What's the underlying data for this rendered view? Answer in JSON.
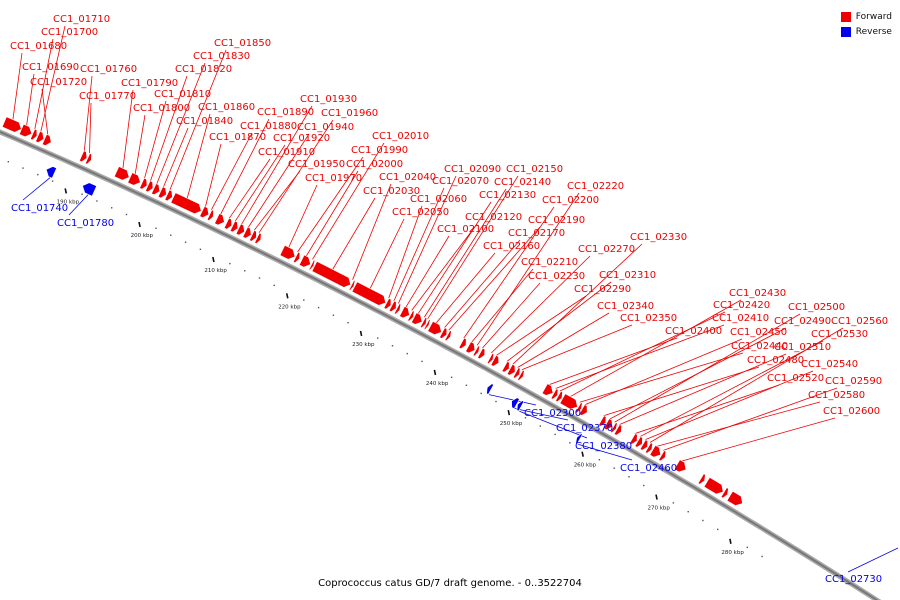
{
  "title": "Coprococcus catus GD/7 draft genome. - 0..3522704",
  "legend": [
    {
      "label": "Forward",
      "color": "#ee0000"
    },
    {
      "label": "Reverse",
      "color": "#0000ee"
    }
  ],
  "colors": {
    "forward": "#ee0000",
    "reverse": "#0000ee",
    "backbone": "#777777"
  },
  "ticks": [
    {
      "kbp": 190,
      "label": "190 kbp"
    },
    {
      "kbp": 200,
      "label": "200 kbp"
    },
    {
      "kbp": 210,
      "label": "210 kbp"
    },
    {
      "kbp": 220,
      "label": "220 kbp"
    },
    {
      "kbp": 230,
      "label": "230 kbp"
    },
    {
      "kbp": 240,
      "label": "240 kbp"
    },
    {
      "kbp": 250,
      "label": "250 kbp"
    },
    {
      "kbp": 260,
      "label": "260 kbp"
    },
    {
      "kbp": 270,
      "label": "270 kbp"
    },
    {
      "kbp": 280,
      "label": "280 kbp"
    }
  ],
  "genes": [
    {
      "id": "CC1_01680",
      "strand": "forward",
      "start": 179.6,
      "end": 181.9
    },
    {
      "id": "CC1_01690",
      "strand": "forward",
      "start": 181.9,
      "end": 183.3
    },
    {
      "id": "CC1_01700",
      "strand": "forward",
      "start": 183.4,
      "end": 184.0
    },
    {
      "id": "CC1_01710",
      "strand": "forward",
      "start": 184.1,
      "end": 184.9
    },
    {
      "id": "CC1_01720",
      "strand": "forward",
      "start": 185.0,
      "end": 185.9
    },
    {
      "id": "CC1_01740",
      "strand": "reverse",
      "start": 186.7,
      "end": 187.8
    },
    {
      "id": "CC1_01760",
      "strand": "forward",
      "start": 190.0,
      "end": 190.7
    },
    {
      "id": "CC1_01770",
      "strand": "forward",
      "start": 190.8,
      "end": 191.3
    },
    {
      "id": "CC1_01780",
      "strand": "reverse",
      "start": 191.6,
      "end": 193.2
    },
    {
      "id": "CC1_01790",
      "strand": "forward",
      "start": 194.7,
      "end": 196.4
    },
    {
      "id": "CC1_01800",
      "strand": "forward",
      "start": 196.5,
      "end": 197.9
    },
    {
      "id": "CC1_01810",
      "strand": "forward",
      "start": 198.1,
      "end": 198.8
    },
    {
      "id": "CC1_01820",
      "strand": "forward",
      "start": 198.9,
      "end": 199.6
    },
    {
      "id": "CC1_01830",
      "strand": "forward",
      "start": 199.7,
      "end": 200.5
    },
    {
      "id": "CC1_01840",
      "strand": "forward",
      "start": 200.6,
      "end": 201.4
    },
    {
      "id": "CC1_01850",
      "strand": "forward",
      "start": 201.5,
      "end": 202.2
    },
    {
      "id": "CC1_01860",
      "strand": "forward",
      "start": 202.3,
      "end": 206.1
    },
    {
      "id": "CC1_01870",
      "strand": "forward",
      "start": 206.2,
      "end": 207.1
    },
    {
      "id": "CC1_01880",
      "strand": "forward",
      "start": 207.2,
      "end": 207.7
    },
    {
      "id": "CC1_01890",
      "strand": "forward",
      "start": 208.2,
      "end": 209.2
    },
    {
      "id": "CC1_01910",
      "strand": "forward",
      "start": 209.5,
      "end": 210.2
    },
    {
      "id": "CC1_01920",
      "strand": "forward",
      "start": 210.3,
      "end": 211.0
    },
    {
      "id": "CC1_01930",
      "strand": "forward",
      "start": 211.1,
      "end": 211.9
    },
    {
      "id": "CC1_01940",
      "strand": "forward",
      "start": 212.0,
      "end": 212.8
    },
    {
      "id": "CC1_01950",
      "strand": "forward",
      "start": 212.9,
      "end": 213.5
    },
    {
      "id": "CC1_01960",
      "strand": "forward",
      "start": 213.6,
      "end": 214.1
    },
    {
      "id": "CC1_01970",
      "strand": "forward",
      "start": 217.0,
      "end": 218.7
    },
    {
      "id": "CC1_01990",
      "strand": "forward",
      "start": 218.8,
      "end": 219.3
    },
    {
      "id": "CC1_02000",
      "strand": "forward",
      "start": 219.6,
      "end": 220.8
    },
    {
      "id": "CC1_02010",
      "strand": "forward",
      "start": 220.9,
      "end": 221.2
    },
    {
      "id": "CC1_02030",
      "strand": "forward",
      "start": 221.3,
      "end": 226.2
    },
    {
      "id": "CC1_02040",
      "strand": "forward",
      "start": 226.3,
      "end": 226.6
    },
    {
      "id": "CC1_02050",
      "strand": "forward",
      "start": 226.7,
      "end": 230.9
    },
    {
      "id": "CC1_02060",
      "strand": "forward",
      "start": 231.0,
      "end": 231.6
    },
    {
      "id": "CC1_02070",
      "strand": "forward",
      "start": 231.7,
      "end": 232.3
    },
    {
      "id": "CC1_02090",
      "strand": "forward",
      "start": 232.4,
      "end": 232.8
    },
    {
      "id": "CC1_02100",
      "strand": "forward",
      "start": 233.1,
      "end": 234.1
    },
    {
      "id": "CC1_02120",
      "strand": "forward",
      "start": 234.2,
      "end": 234.6
    },
    {
      "id": "CC1_02130",
      "strand": "forward",
      "start": 234.7,
      "end": 235.8
    },
    {
      "id": "CC1_02140",
      "strand": "forward",
      "start": 235.9,
      "end": 236.3
    },
    {
      "id": "CC1_02150",
      "strand": "forward",
      "start": 236.4,
      "end": 236.7
    },
    {
      "id": "CC1_02160",
      "strand": "forward",
      "start": 236.9,
      "end": 238.4
    },
    {
      "id": "CC1_02170",
      "strand": "forward",
      "start": 238.5,
      "end": 239.1
    },
    {
      "id": "CC1_02190",
      "strand": "forward",
      "start": 239.2,
      "end": 239.6
    },
    {
      "id": "CC1_02200",
      "strand": "forward",
      "start": 241.1,
      "end": 241.7
    },
    {
      "id": "CC1_02210",
      "strand": "forward",
      "start": 242.0,
      "end": 242.9
    },
    {
      "id": "CC1_02220",
      "strand": "forward",
      "start": 243.0,
      "end": 243.4
    },
    {
      "id": "CC1_02230",
      "strand": "forward",
      "start": 243.6,
      "end": 244.2
    },
    {
      "id": "CC1_02270",
      "strand": "forward",
      "start": 244.9,
      "end": 245.3
    },
    {
      "id": "CC1_02290",
      "strand": "forward",
      "start": 245.4,
      "end": 246.1
    },
    {
      "id": "CC1_02300",
      "strand": "reverse",
      "start": 246.3,
      "end": 246.8
    },
    {
      "id": "CC1_02310",
      "strand": "forward",
      "start": 246.9,
      "end": 247.5
    },
    {
      "id": "CC1_02330",
      "strand": "forward",
      "start": 247.6,
      "end": 248.3
    },
    {
      "id": "CC1_02340",
      "strand": "forward",
      "start": 248.4,
      "end": 248.9
    },
    {
      "id": "CC1_02350",
      "strand": "forward",
      "start": 249.0,
      "end": 249.4
    },
    {
      "id": "CC1_02370",
      "strand": "reverse",
      "start": 249.6,
      "end": 250.3
    },
    {
      "id": "CC1_02380",
      "strand": "reverse",
      "start": 250.4,
      "end": 250.9
    },
    {
      "id": "CC1_02400",
      "strand": "forward",
      "start": 252.3,
      "end": 253.4
    },
    {
      "id": "CC1_02410",
      "strand": "forward",
      "start": 253.5,
      "end": 254.0
    },
    {
      "id": "CC1_02420",
      "strand": "forward",
      "start": 254.1,
      "end": 254.6
    },
    {
      "id": "CC1_02430",
      "strand": "forward",
      "start": 254.7,
      "end": 256.7
    },
    {
      "id": "CC1_02440",
      "strand": "forward",
      "start": 256.8,
      "end": 257.2
    },
    {
      "id": "CC1_02450",
      "strand": "forward",
      "start": 257.3,
      "end": 258.0
    },
    {
      "id": "CC1_02460",
      "strand": "reverse",
      "start": 258.4,
      "end": 258.8
    },
    {
      "id": "CC1_02480",
      "strand": "forward",
      "start": 259.9,
      "end": 260.5
    },
    {
      "id": "CC1_02490",
      "strand": "forward",
      "start": 260.6,
      "end": 261.4
    },
    {
      "id": "CC1_02500",
      "strand": "forward",
      "start": 261.5,
      "end": 261.9
    },
    {
      "id": "CC1_02510",
      "strand": "forward",
      "start": 262.0,
      "end": 262.6
    },
    {
      "id": "CC1_02520",
      "strand": "forward",
      "start": 264.1,
      "end": 264.7
    },
    {
      "id": "CC1_02530",
      "strand": "forward",
      "start": 264.8,
      "end": 265.4
    },
    {
      "id": "CC1_02540",
      "strand": "forward",
      "start": 265.5,
      "end": 266.1
    },
    {
      "id": "CC1_02560",
      "strand": "forward",
      "start": 266.2,
      "end": 266.7
    },
    {
      "id": "CC1_02580",
      "strand": "forward",
      "start": 266.8,
      "end": 267.9
    },
    {
      "id": "CC1_02590",
      "strand": "forward",
      "start": 268.0,
      "end": 268.5
    },
    {
      "id": "CC1_02600",
      "strand": "forward",
      "start": 270.1,
      "end": 271.3
    },
    {
      "id": "",
      "strand": "forward",
      "start": 273.3,
      "end": 273.8
    },
    {
      "id": "",
      "strand": "forward",
      "start": 274.1,
      "end": 276.3
    },
    {
      "id": "",
      "strand": "forward",
      "start": 276.4,
      "end": 276.9
    },
    {
      "id": "",
      "strand": "forward",
      "start": 277.2,
      "end": 278.9
    }
  ],
  "extra_labels": [
    {
      "id": "CC1_02730",
      "strand": "reverse"
    }
  ]
}
